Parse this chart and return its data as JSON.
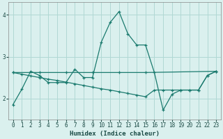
{
  "xlabel": "Humidex (Indice chaleur)",
  "xlim": [
    -0.5,
    23.5
  ],
  "ylim": [
    1.5,
    4.3
  ],
  "yticks": [
    2,
    3,
    4
  ],
  "xticks": [
    0,
    1,
    2,
    3,
    4,
    5,
    6,
    7,
    8,
    9,
    10,
    11,
    12,
    13,
    14,
    15,
    16,
    17,
    18,
    19,
    20,
    21,
    22,
    23
  ],
  "bg_color": "#daf0ee",
  "grid_color": "#b0d8d4",
  "line_color": "#1a7a6e",
  "series1_x": [
    0,
    1,
    2,
    3,
    4,
    5,
    6,
    7,
    8,
    9,
    10,
    11,
    12,
    13,
    14,
    15,
    16,
    17,
    18,
    19,
    20,
    21,
    22,
    23
  ],
  "series1_y": [
    1.85,
    2.22,
    2.65,
    2.55,
    2.38,
    2.38,
    2.38,
    2.7,
    2.5,
    2.5,
    3.35,
    3.82,
    4.08,
    3.55,
    3.28,
    3.28,
    2.62,
    1.72,
    2.1,
    2.2,
    2.2,
    2.2,
    2.55,
    2.65
  ],
  "series2_x": [
    0,
    3,
    6,
    9,
    12,
    15,
    23
  ],
  "series2_y": [
    2.62,
    2.62,
    2.62,
    2.62,
    2.62,
    2.62,
    2.65
  ],
  "series3_x": [
    0,
    1,
    2,
    3,
    4,
    5,
    6,
    7,
    8,
    9,
    10,
    11,
    12,
    13,
    14,
    15,
    16,
    17,
    18,
    19,
    20,
    21,
    22,
    23
  ],
  "series3_y": [
    2.62,
    2.58,
    2.54,
    2.5,
    2.46,
    2.43,
    2.39,
    2.35,
    2.31,
    2.27,
    2.23,
    2.2,
    2.16,
    2.12,
    2.08,
    2.04,
    2.2,
    2.2,
    2.2,
    2.2,
    2.2,
    2.2,
    2.55,
    2.65
  ]
}
